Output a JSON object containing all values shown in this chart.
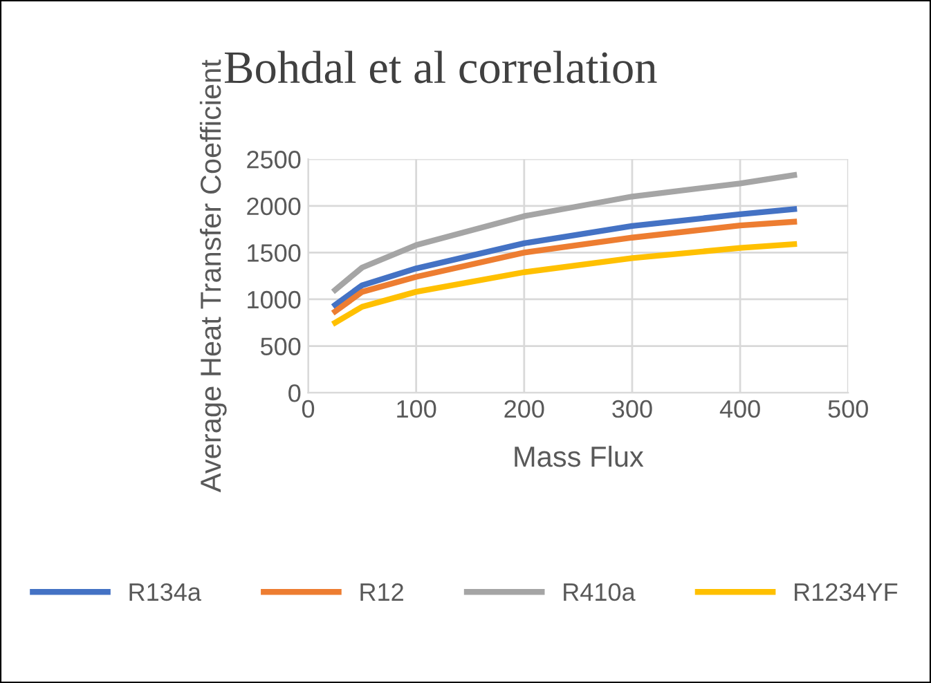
{
  "chart_data": {
    "type": "line",
    "title": "Bohdal et al correlation",
    "xlabel": "Mass Flux",
    "ylabel": "Average Heat Transfer Coefficient",
    "xlim": [
      0,
      500
    ],
    "xticks": [
      0,
      100,
      200,
      300,
      400,
      500
    ],
    "ylim": [
      0,
      2500
    ],
    "yticks": [
      0,
      500,
      1000,
      1500,
      2000,
      2500
    ],
    "grid": true,
    "legend": "bottom",
    "marker": "none",
    "line_style": "solid",
    "x": [
      25,
      50,
      100,
      200,
      300,
      400,
      450
    ],
    "series": [
      {
        "name": "R134a",
        "color": "#4472c4",
        "values": [
          940,
          1150,
          1330,
          1600,
          1785,
          1910,
          1965
        ]
      },
      {
        "name": "R12",
        "color": "#ed7d31",
        "values": [
          870,
          1080,
          1240,
          1500,
          1660,
          1790,
          1830
        ]
      },
      {
        "name": "R410a",
        "color": "#a5a5a5",
        "values": [
          1100,
          1340,
          1580,
          1890,
          2100,
          2240,
          2330
        ]
      },
      {
        "name": "R1234YF",
        "color": "#ffc000",
        "values": [
          750,
          920,
          1080,
          1290,
          1440,
          1550,
          1590
        ]
      }
    ]
  }
}
